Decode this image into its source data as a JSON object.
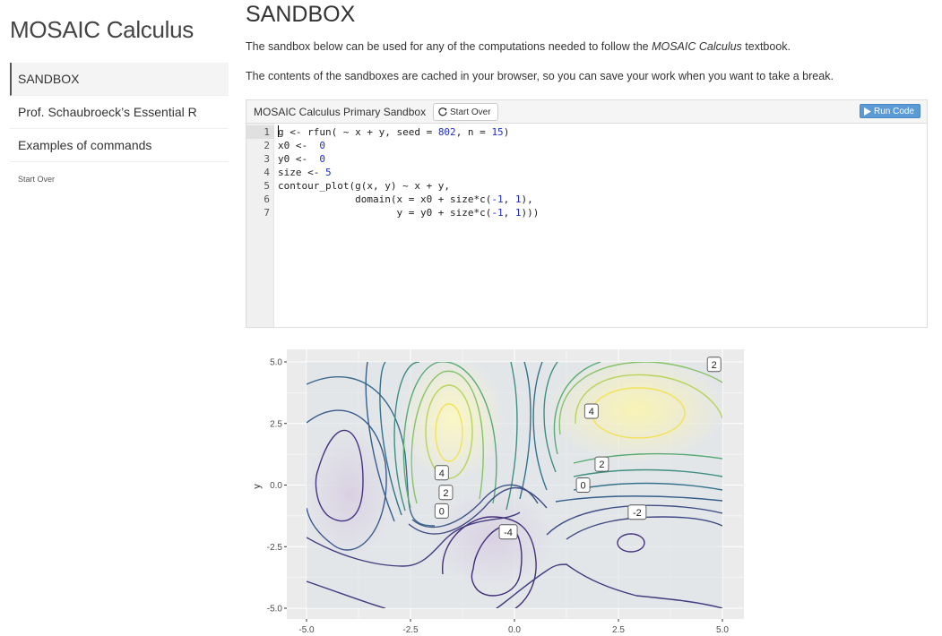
{
  "sidebar": {
    "brand": "MOSAIC Calculus",
    "items": [
      {
        "label": "SANDBOX"
      },
      {
        "label": "Prof. Schaubroeck’s Essential R"
      },
      {
        "label": "Examples of commands"
      }
    ],
    "start_over": "Start Over"
  },
  "main": {
    "title": "SANDBOX",
    "intro_before": "The sandbox below can be used for any of the computations needed to follow the ",
    "intro_emph": "MOSAIC Calculus",
    "intro_after": " textbook.",
    "cache_note": "The contents of the sandboxes are cached in your browser, so you can save your work when you want to take a break."
  },
  "sandbox": {
    "title": "MOSAIC Calculus Primary Sandbox",
    "start_over_label": "Start Over",
    "run_label": "Run Code",
    "code_lines": [
      "g <- rfun( ~ x + y, seed = 802, n = 15)",
      "x0 <-  0",
      "y0 <-  0",
      "size <- 5",
      "contour_plot(g(x, y) ~ x + y,",
      "             domain(x = x0 + size*c(-1, 1),",
      "                    y = y0 + size*c(-1, 1)))"
    ]
  },
  "colors": {
    "panel_bg": "#ebebeb",
    "run_button": "#5b9bd5",
    "number": "#1e2dc8"
  },
  "chart_data": {
    "type": "contour",
    "xlabel": "",
    "ylabel": "y",
    "xlim": [
      -5,
      5
    ],
    "ylim": [
      -5,
      5
    ],
    "x_ticks": [
      "-5.0",
      "-2.5",
      "0.0",
      "2.5",
      "5.0"
    ],
    "y_ticks": [
      "5.0",
      "2.5",
      "0.0",
      "-2.5",
      "-5.0"
    ],
    "contour_labels": [
      {
        "text": "2",
        "x": 4.8,
        "y": 4.9
      },
      {
        "text": "4",
        "x": 1.85,
        "y": 3.0
      },
      {
        "text": "2",
        "x": 2.1,
        "y": 0.85
      },
      {
        "text": "0",
        "x": 1.65,
        "y": 0.0
      },
      {
        "text": "-2",
        "x": 2.95,
        "y": -1.1
      },
      {
        "text": "4",
        "x": -1.75,
        "y": 0.5
      },
      {
        "text": "2",
        "x": -1.65,
        "y": -0.3
      },
      {
        "text": "0",
        "x": -1.75,
        "y": -1.05
      },
      {
        "text": "-4",
        "x": -0.15,
        "y": -1.9
      }
    ],
    "grid": true,
    "legend": "none"
  }
}
